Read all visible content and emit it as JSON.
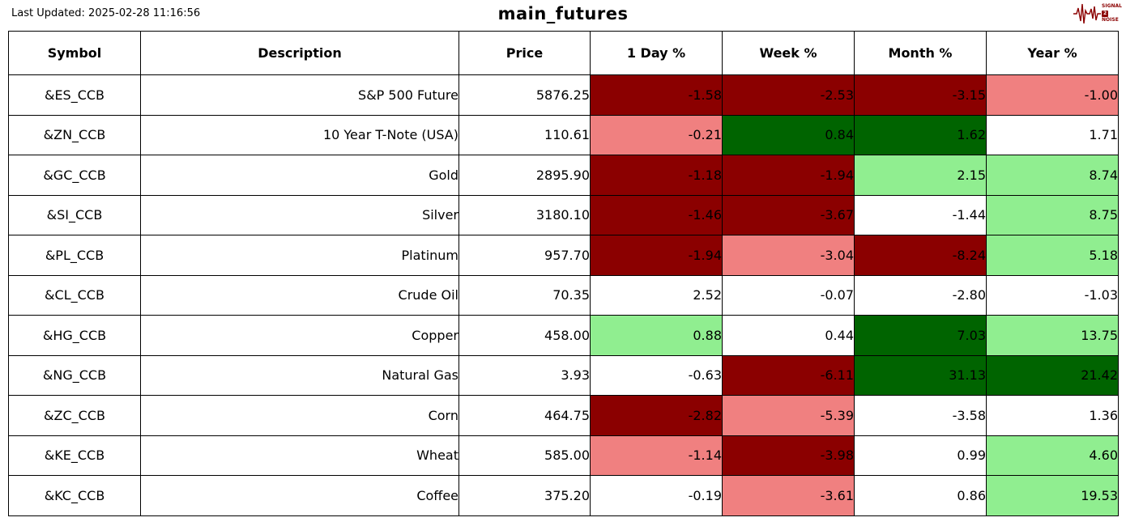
{
  "header": {
    "last_updated": "Last Updated: 2025-02-28 11:16:56",
    "title": "main_futures",
    "logo": {
      "line1": "SIGNAL",
      "line2": "2",
      "line3": "NOISE"
    }
  },
  "colors": {
    "darkred": "#8B0000",
    "lightcoral": "#F08080",
    "white": "#FFFFFF",
    "lightgreen": "#90EE90",
    "darkgreen": "#006400",
    "logo_accent": "#8B0000"
  },
  "table": {
    "columns": [
      "Symbol",
      "Description",
      "Price",
      "1 Day %",
      "Week %",
      "Month %",
      "Year %"
    ],
    "rows": [
      {
        "symbol": "&ES_CCB",
        "description": "S&P 500 Future",
        "price": "5876.25",
        "pcts": [
          {
            "v": "-1.58",
            "c": "darkred"
          },
          {
            "v": "-2.53",
            "c": "darkred"
          },
          {
            "v": "-3.15",
            "c": "darkred"
          },
          {
            "v": "-1.00",
            "c": "lightcoral"
          }
        ]
      },
      {
        "symbol": "&ZN_CCB",
        "description": "10 Year T-Note (USA)",
        "price": "110.61",
        "pcts": [
          {
            "v": "-0.21",
            "c": "lightcoral"
          },
          {
            "v": "0.84",
            "c": "darkgreen"
          },
          {
            "v": "1.62",
            "c": "darkgreen"
          },
          {
            "v": "1.71",
            "c": "white"
          }
        ]
      },
      {
        "symbol": "&GC_CCB",
        "description": "Gold",
        "price": "2895.90",
        "pcts": [
          {
            "v": "-1.18",
            "c": "darkred"
          },
          {
            "v": "-1.94",
            "c": "darkred"
          },
          {
            "v": "2.15",
            "c": "lightgreen"
          },
          {
            "v": "8.74",
            "c": "lightgreen"
          }
        ]
      },
      {
        "symbol": "&SI_CCB",
        "description": "Silver",
        "price": "3180.10",
        "pcts": [
          {
            "v": "-1.46",
            "c": "darkred"
          },
          {
            "v": "-3.67",
            "c": "darkred"
          },
          {
            "v": "-1.44",
            "c": "white"
          },
          {
            "v": "8.75",
            "c": "lightgreen"
          }
        ]
      },
      {
        "symbol": "&PL_CCB",
        "description": "Platinum",
        "price": "957.70",
        "pcts": [
          {
            "v": "-1.94",
            "c": "darkred"
          },
          {
            "v": "-3.04",
            "c": "lightcoral"
          },
          {
            "v": "-8.24",
            "c": "darkred"
          },
          {
            "v": "5.18",
            "c": "lightgreen"
          }
        ]
      },
      {
        "symbol": "&CL_CCB",
        "description": "Crude Oil",
        "price": "70.35",
        "pcts": [
          {
            "v": "2.52",
            "c": "white"
          },
          {
            "v": "-0.07",
            "c": "white"
          },
          {
            "v": "-2.80",
            "c": "white"
          },
          {
            "v": "-1.03",
            "c": "white"
          }
        ]
      },
      {
        "symbol": "&HG_CCB",
        "description": "Copper",
        "price": "458.00",
        "pcts": [
          {
            "v": "0.88",
            "c": "lightgreen"
          },
          {
            "v": "0.44",
            "c": "white"
          },
          {
            "v": "7.03",
            "c": "darkgreen"
          },
          {
            "v": "13.75",
            "c": "lightgreen"
          }
        ]
      },
      {
        "symbol": "&NG_CCB",
        "description": "Natural Gas",
        "price": "3.93",
        "pcts": [
          {
            "v": "-0.63",
            "c": "white"
          },
          {
            "v": "-6.11",
            "c": "darkred"
          },
          {
            "v": "31.13",
            "c": "darkgreen"
          },
          {
            "v": "21.42",
            "c": "darkgreen"
          }
        ]
      },
      {
        "symbol": "&ZC_CCB",
        "description": "Corn",
        "price": "464.75",
        "pcts": [
          {
            "v": "-2.82",
            "c": "darkred"
          },
          {
            "v": "-5.39",
            "c": "lightcoral"
          },
          {
            "v": "-3.58",
            "c": "white"
          },
          {
            "v": "1.36",
            "c": "white"
          }
        ]
      },
      {
        "symbol": "&KE_CCB",
        "description": "Wheat",
        "price": "585.00",
        "pcts": [
          {
            "v": "-1.14",
            "c": "lightcoral"
          },
          {
            "v": "-3.98",
            "c": "darkred"
          },
          {
            "v": "0.99",
            "c": "white"
          },
          {
            "v": "4.60",
            "c": "lightgreen"
          }
        ]
      },
      {
        "symbol": "&KC_CCB",
        "description": "Coffee",
        "price": "375.20",
        "pcts": [
          {
            "v": "-0.19",
            "c": "white"
          },
          {
            "v": "-3.61",
            "c": "lightcoral"
          },
          {
            "v": "0.86",
            "c": "white"
          },
          {
            "v": "19.53",
            "c": "lightgreen"
          }
        ]
      }
    ]
  },
  "chart_data": {
    "type": "table",
    "title": "main_futures",
    "columns": [
      "Symbol",
      "Description",
      "Price",
      "1 Day %",
      "Week %",
      "Month %",
      "Year %"
    ],
    "rows": [
      [
        "&ES_CCB",
        "S&P 500 Future",
        5876.25,
        -1.58,
        -2.53,
        -3.15,
        -1.0
      ],
      [
        "&ZN_CCB",
        "10 Year T-Note (USA)",
        110.61,
        -0.21,
        0.84,
        1.62,
        1.71
      ],
      [
        "&GC_CCB",
        "Gold",
        2895.9,
        -1.18,
        -1.94,
        2.15,
        8.74
      ],
      [
        "&SI_CCB",
        "Silver",
        3180.1,
        -1.46,
        -3.67,
        -1.44,
        8.75
      ],
      [
        "&PL_CCB",
        "Platinum",
        957.7,
        -1.94,
        -3.04,
        -8.24,
        5.18
      ],
      [
        "&CL_CCB",
        "Crude Oil",
        70.35,
        2.52,
        -0.07,
        -2.8,
        -1.03
      ],
      [
        "&HG_CCB",
        "Copper",
        458.0,
        0.88,
        0.44,
        7.03,
        13.75
      ],
      [
        "&NG_CCB",
        "Natural Gas",
        3.93,
        -0.63,
        -6.11,
        31.13,
        21.42
      ],
      [
        "&ZC_CCB",
        "Corn",
        464.75,
        -2.82,
        -5.39,
        -3.58,
        1.36
      ],
      [
        "&KE_CCB",
        "Wheat",
        585.0,
        -1.14,
        -3.98,
        0.99,
        4.6
      ],
      [
        "&KC_CCB",
        "Coffee",
        375.2,
        -0.19,
        -3.61,
        0.86,
        19.53
      ]
    ]
  }
}
